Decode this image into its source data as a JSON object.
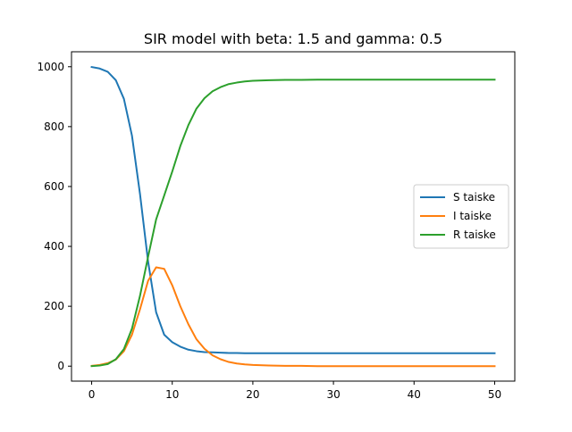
{
  "chart_data": {
    "type": "line",
    "title": "SIR model with beta: 1.5  and gamma: 0.5",
    "xlabel": "",
    "ylabel": "",
    "xlim": [
      -2.5,
      52.5
    ],
    "ylim": [
      -50,
      1050
    ],
    "x_ticks": [
      0,
      10,
      20,
      30,
      40,
      50
    ],
    "y_ticks": [
      0,
      200,
      400,
      600,
      800,
      1000
    ],
    "grid": false,
    "legend_position": "center-right",
    "colors": {
      "S": "#1f77b4",
      "I": "#ff7f0e",
      "R": "#2ca02c"
    },
    "x": [
      0,
      1,
      2,
      3,
      4,
      5,
      6,
      7,
      8,
      9,
      10,
      11,
      12,
      13,
      14,
      15,
      16,
      17,
      18,
      19,
      20,
      22,
      24,
      26,
      28,
      30,
      35,
      40,
      45,
      50
    ],
    "series": [
      {
        "key": "S",
        "name": "S taiske",
        "values": [
          999,
          994,
          983,
          955,
          893,
          770,
          575,
          350,
          180,
          105,
          80,
          65,
          55,
          50,
          47,
          46,
          45,
          44,
          44,
          43,
          43,
          43,
          43,
          43,
          43,
          43,
          43,
          43,
          43,
          43
        ]
      },
      {
        "key": "I",
        "name": "I taiske",
        "values": [
          1,
          4,
          10,
          22,
          50,
          105,
          190,
          285,
          330,
          325,
          270,
          200,
          140,
          90,
          58,
          36,
          23,
          14,
          9,
          6,
          4,
          2,
          1,
          1,
          0,
          0,
          0,
          0,
          0,
          0
        ]
      },
      {
        "key": "R",
        "name": "R taiske",
        "values": [
          0,
          2,
          7,
          23,
          57,
          125,
          235,
          365,
          490,
          570,
          650,
          735,
          805,
          860,
          895,
          918,
          932,
          942,
          947,
          951,
          953,
          955,
          956,
          956,
          957,
          957,
          957,
          957,
          957,
          957
        ]
      }
    ]
  }
}
